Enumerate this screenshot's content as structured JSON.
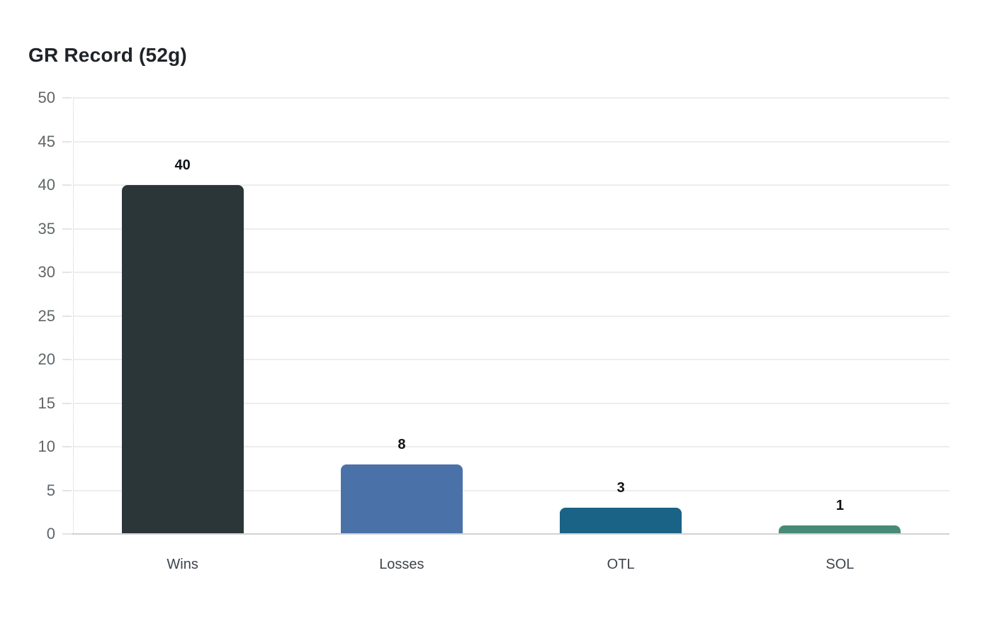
{
  "chart_data": {
    "type": "bar",
    "title": "GR Record (52g)",
    "categories": [
      "Wins",
      "Losses",
      "OTL",
      "SOL"
    ],
    "values": [
      40,
      8,
      3,
      1
    ],
    "value_labels": [
      "40",
      "8",
      "3",
      "1"
    ],
    "bar_colors": [
      "#2b3638",
      "#4b72a8",
      "#1a6386",
      "#478a78"
    ],
    "ylim": [
      0,
      50
    ],
    "ytick_step": 5,
    "ytick_labels": [
      "0",
      "5",
      "10",
      "15",
      "20",
      "25",
      "30",
      "35",
      "40",
      "45",
      "50"
    ],
    "xlabel": "",
    "ylabel": "",
    "grid": "on",
    "legend": "none",
    "colors": {
      "background": "#ffffff",
      "title_text": "#1f2429",
      "ytick_text": "#5f6569",
      "category_text": "#3e444a",
      "value_text": "#101316",
      "gridline": "#ededed",
      "tick_mark": "#e4e4e4",
      "baseline": "#d2d2d2",
      "axis_dotted": "#cfcfcf"
    }
  }
}
